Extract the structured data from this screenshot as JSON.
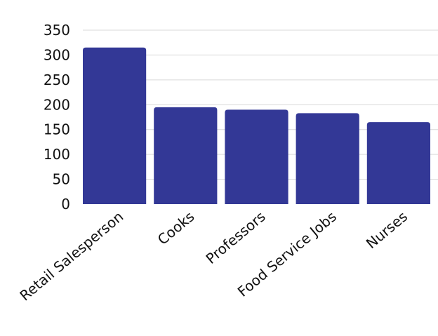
{
  "chart_data": {
    "type": "bar",
    "categories": [
      "Retail Salesperson",
      "Cooks",
      "Professors",
      "Food Service Jobs",
      "Nurses"
    ],
    "values": [
      315,
      195,
      190,
      183,
      165
    ],
    "ylim": [
      0,
      350
    ],
    "yticks": [
      0,
      50,
      100,
      150,
      200,
      250,
      300,
      350
    ],
    "grid": true,
    "colors": {
      "bar": "#333896",
      "grid": "#d9d9d9",
      "text": "#111111"
    }
  }
}
